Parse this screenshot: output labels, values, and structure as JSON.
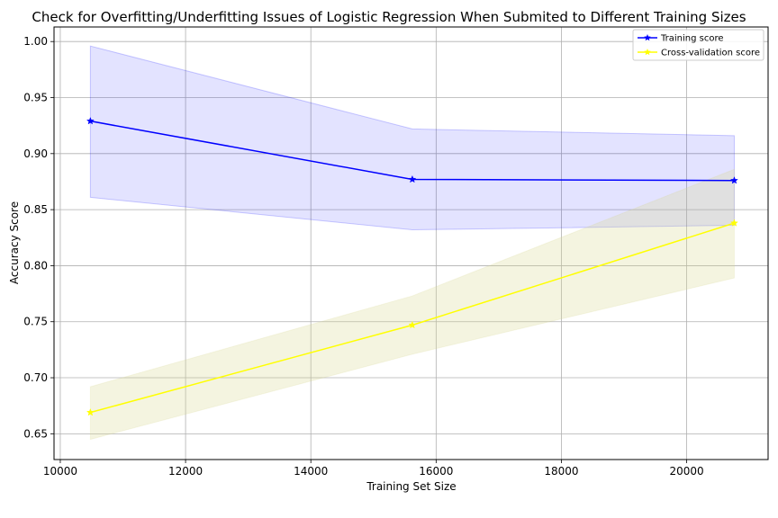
{
  "chart_data": {
    "type": "line",
    "title": "Check for Overfitting/Underfitting Issues of Logistic Regression When Submited to Different Training Sizes",
    "xlabel": "Training Set Size",
    "ylabel": "Accuracy Score",
    "xlim": [
      9900,
      21300
    ],
    "ylim": [
      0.627,
      1.013
    ],
    "xticks": [
      10000,
      12000,
      14000,
      16000,
      18000,
      20000
    ],
    "yticks": [
      0.65,
      0.7,
      0.75,
      0.8,
      0.85,
      0.9,
      0.95,
      1.0
    ],
    "grid": true,
    "legend_position": "top-right",
    "x": [
      10480,
      15620,
      20760
    ],
    "series": [
      {
        "name": "Training score",
        "color": "#0000ff",
        "band_color": "#0000ff",
        "marker": "star",
        "values": [
          0.929,
          0.877,
          0.876
        ],
        "band_upper": [
          0.996,
          0.922,
          0.916
        ],
        "band_lower": [
          0.861,
          0.832,
          0.836
        ]
      },
      {
        "name": "Cross-validation score",
        "color": "#ffff00",
        "band_color": "#d8d890",
        "marker": "star",
        "values": [
          0.669,
          0.747,
          0.838
        ],
        "band_upper": [
          0.692,
          0.773,
          0.886
        ],
        "band_lower": [
          0.645,
          0.721,
          0.789
        ]
      }
    ]
  }
}
